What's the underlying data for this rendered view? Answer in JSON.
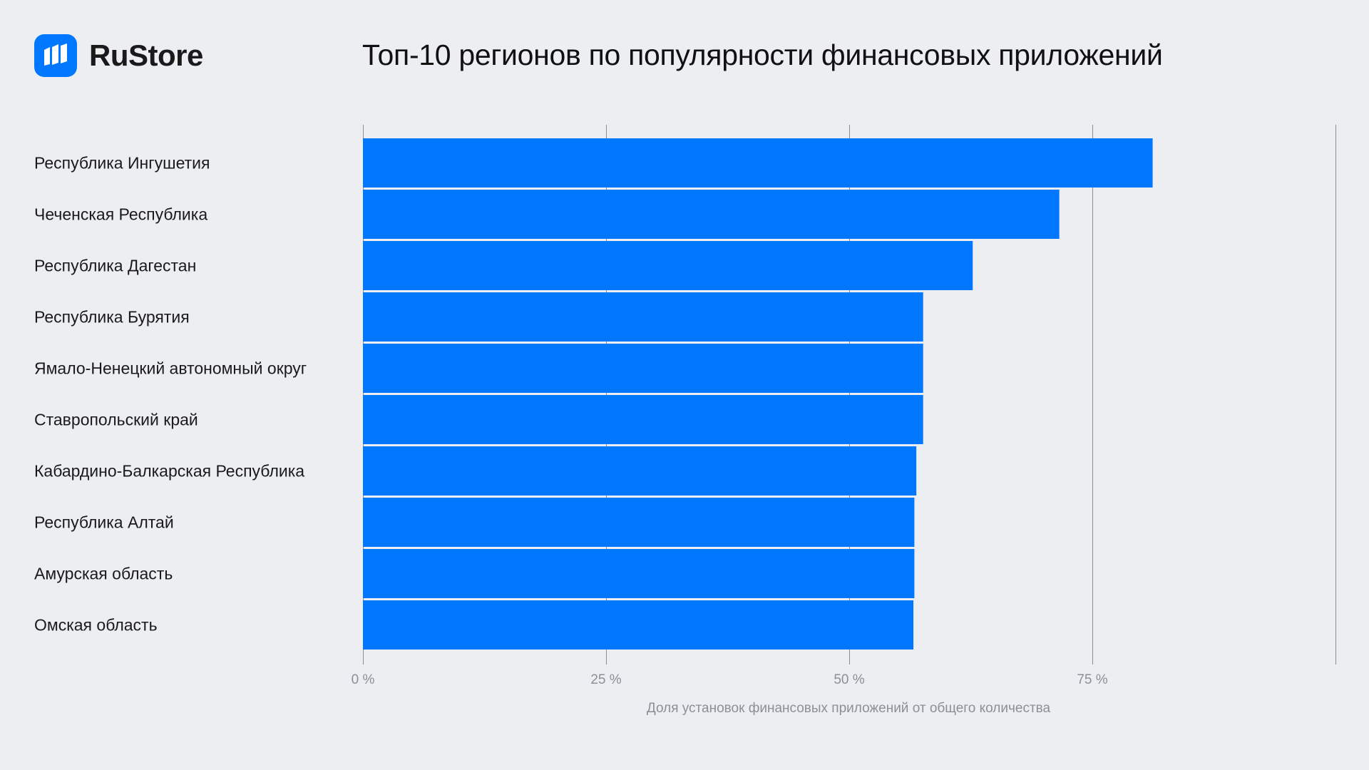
{
  "brand": {
    "name": "RuStore",
    "logo_icon": "rustore-logo-icon",
    "accent_color": "#0077ff"
  },
  "chart_data": {
    "type": "bar",
    "orientation": "horizontal",
    "title": "Топ-10 регионов по популярности финансовых приложений",
    "xlabel": "Доля установок финансовых приложений от общего количества",
    "ylabel": "",
    "categories": [
      "Республика Ингушетия",
      "Чеченская Республика",
      "Республика Дагестан",
      "Республика Бурятия",
      "Ямало-Ненецкий автономный округ",
      "Ставропольский край",
      "Кабардино-Балкарская Республика",
      "Республика Алтай",
      "Амурская область",
      "Омская область"
    ],
    "values": [
      81.2,
      71.6,
      62.7,
      57.6,
      57.6,
      57.6,
      56.9,
      56.7,
      56.7,
      56.6
    ],
    "xlim": [
      0,
      100
    ],
    "ticks": [
      0,
      25,
      50,
      75,
      100
    ],
    "tick_labels": [
      "0 %",
      "25 %",
      "50 %",
      "75 %",
      ""
    ],
    "grid": true,
    "legend": "none",
    "bar_color": "#0077ff",
    "gridline_color": "#8e8e8e"
  }
}
